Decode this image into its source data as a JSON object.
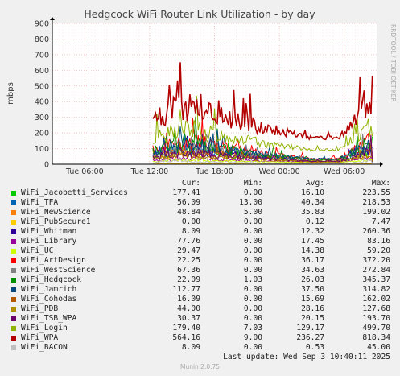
{
  "chart_data": {
    "type": "line",
    "title": "Hedgcock WiFi Router Link Utilization - by day",
    "ylabel": "mbps",
    "side_label": "RRDTOOL / TOBI OETIKER",
    "x_ticks": [
      "Tue 06:00",
      "Tue 12:00",
      "Tue 18:00",
      "Wed 00:00",
      "Wed 06:00"
    ],
    "y_ticks": [
      0,
      100,
      200,
      300,
      400,
      500,
      600,
      700,
      800,
      900
    ],
    "ylim": [
      0,
      900
    ],
    "x_range_hours": [
      0,
      30
    ],
    "grid": true,
    "legend_headers": {
      "cur": "Cur:",
      "min": "Min:",
      "avg": "Avg:",
      "max": "Max:"
    },
    "series": [
      {
        "name": "WiFi_Jacobetti_Services",
        "color": "#00cc00",
        "cur": "177.41",
        "min": "0.00",
        "avg": "16.10",
        "max": "223.55"
      },
      {
        "name": "WiFi_TFA",
        "color": "#0066b3",
        "cur": "56.09",
        "min": "13.00",
        "avg": "40.34",
        "max": "218.53"
      },
      {
        "name": "WiFi_NewScience",
        "color": "#ff8000",
        "cur": "48.84",
        "min": "5.00",
        "avg": "35.83",
        "max": "199.02"
      },
      {
        "name": "WiFi_PubSecure1",
        "color": "#ffcc00",
        "cur": "0.00",
        "min": "0.00",
        "avg": "0.12",
        "max": "7.47"
      },
      {
        "name": "WiFi_Whitman",
        "color": "#330099",
        "cur": "8.09",
        "min": "0.00",
        "avg": "12.32",
        "max": "260.36"
      },
      {
        "name": "WiFi_Library",
        "color": "#990099",
        "cur": "77.76",
        "min": "0.00",
        "avg": "17.45",
        "max": "83.16"
      },
      {
        "name": "WiFi_UC",
        "color": "#ccff00",
        "cur": "29.47",
        "min": "0.00",
        "avg": "14.38",
        "max": "59.20"
      },
      {
        "name": "WiFi_ArtDesign",
        "color": "#ff0000",
        "cur": "22.25",
        "min": "0.00",
        "avg": "36.17",
        "max": "372.20"
      },
      {
        "name": "WiFi_WestScience",
        "color": "#808080",
        "cur": "67.36",
        "min": "0.00",
        "avg": "34.63",
        "max": "272.84"
      },
      {
        "name": "WiFi_Hedgcock",
        "color": "#008f00",
        "cur": "22.09",
        "min": "1.03",
        "avg": "26.03",
        "max": "345.37"
      },
      {
        "name": "WiFi_Jamrich",
        "color": "#00487d",
        "cur": "112.77",
        "min": "0.00",
        "avg": "37.50",
        "max": "314.82"
      },
      {
        "name": "WiFi_Cohodas",
        "color": "#b35a00",
        "cur": "16.09",
        "min": "0.00",
        "avg": "15.69",
        "max": "162.02"
      },
      {
        "name": "WiFi_PDB",
        "color": "#b38f00",
        "cur": "44.00",
        "min": "0.00",
        "avg": "28.16",
        "max": "127.68"
      },
      {
        "name": "WiFi_TSB_WPA",
        "color": "#6b006b",
        "cur": "30.37",
        "min": "0.00",
        "avg": "20.15",
        "max": "193.70"
      },
      {
        "name": "WiFi_Login",
        "color": "#8fb300",
        "cur": "179.40",
        "min": "7.03",
        "avg": "129.17",
        "max": "499.70"
      },
      {
        "name": "WiFi_WPA",
        "color": "#b30000",
        "cur": "564.16",
        "min": "9.00",
        "avg": "236.27",
        "max": "818.34"
      },
      {
        "name": "WiFi_BACON",
        "color": "#bebebe",
        "cur": "8.09",
        "min": "0.00",
        "avg": "0.53",
        "max": "45.00"
      }
    ]
  },
  "footer": {
    "last_update": "Last update: Wed Sep  3 10:40:11 2025",
    "version": "Munin 2.0.75"
  }
}
